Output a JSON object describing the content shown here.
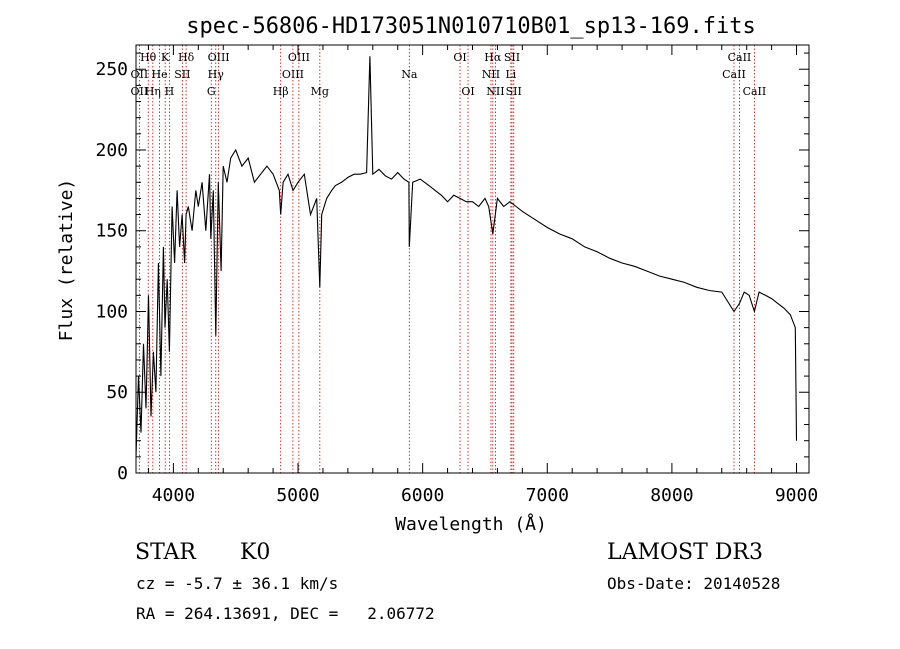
{
  "chart_data": {
    "type": "line",
    "title": "spec-56806-HD173051N010710B01_sp13-169.fits",
    "xlabel": "Wavelength (Å)",
    "ylabel": "Flux (relative)",
    "xlim": [
      3700,
      9100
    ],
    "ylim": [
      0,
      265
    ],
    "xticks": [
      4000,
      5000,
      6000,
      7000,
      8000,
      9000
    ],
    "yticks": [
      0,
      50,
      100,
      150,
      200,
      250
    ],
    "series": [
      {
        "name": "flux",
        "x": [
          3700,
          3720,
          3740,
          3760,
          3780,
          3800,
          3820,
          3840,
          3860,
          3880,
          3900,
          3920,
          3933,
          3950,
          3968,
          3990,
          4010,
          4030,
          4050,
          4070,
          4090,
          4102,
          4120,
          4150,
          4180,
          4200,
          4230,
          4260,
          4290,
          4300,
          4320,
          4340,
          4360,
          4383,
          4400,
          4430,
          4460,
          4500,
          4550,
          4600,
          4650,
          4700,
          4750,
          4800,
          4850,
          4861,
          4880,
          4920,
          4960,
          5000,
          5050,
          5100,
          5150,
          5175,
          5190,
          5230,
          5270,
          5300,
          5350,
          5400,
          5450,
          5500,
          5550,
          5577,
          5600,
          5650,
          5700,
          5750,
          5800,
          5850,
          5890,
          5893,
          5920,
          5980,
          6050,
          6100,
          6150,
          6200,
          6250,
          6300,
          6350,
          6400,
          6450,
          6500,
          6530,
          6563,
          6600,
          6650,
          6700,
          6750,
          6800,
          6900,
          7000,
          7100,
          7200,
          7300,
          7400,
          7500,
          7600,
          7700,
          7800,
          7900,
          8000,
          8100,
          8200,
          8300,
          8400,
          8498,
          8542,
          8580,
          8620,
          8662,
          8700,
          8750,
          8800,
          8850,
          8900,
          8950,
          8990,
          9000
        ],
        "values": [
          10,
          60,
          25,
          80,
          40,
          110,
          35,
          75,
          50,
          130,
          60,
          140,
          90,
          120,
          75,
          165,
          130,
          175,
          140,
          160,
          130,
          160,
          165,
          150,
          175,
          165,
          180,
          150,
          185,
          145,
          175,
          85,
          180,
          125,
          190,
          180,
          195,
          200,
          190,
          195,
          180,
          185,
          190,
          185,
          175,
          160,
          180,
          185,
          175,
          180,
          185,
          160,
          170,
          115,
          160,
          170,
          175,
          178,
          180,
          183,
          185,
          185,
          186,
          258,
          185,
          188,
          184,
          182,
          186,
          182,
          180,
          140,
          180,
          182,
          178,
          175,
          172,
          168,
          172,
          170,
          168,
          168,
          165,
          170,
          165,
          148,
          170,
          165,
          168,
          165,
          162,
          157,
          152,
          148,
          145,
          140,
          137,
          133,
          130,
          128,
          125,
          122,
          120,
          118,
          115,
          113,
          112,
          100,
          105,
          112,
          110,
          100,
          112,
          110,
          108,
          105,
          102,
          98,
          90,
          20
        ]
      }
    ],
    "annotations": [
      {
        "label": "Hθ",
        "x": 3798,
        "row": 1
      },
      {
        "label": "OII",
        "x": 3727,
        "row": 2
      },
      {
        "label": "OII",
        "x": 3727,
        "row": 3
      },
      {
        "label": "Hη",
        "x": 3835,
        "row": 3
      },
      {
        "label": "He",
        "x": 3889,
        "row": 2
      },
      {
        "label": "K",
        "x": 3934,
        "row": 1
      },
      {
        "label": "H",
        "x": 3968,
        "row": 3
      },
      {
        "label": "SII",
        "x": 4072,
        "row": 2
      },
      {
        "label": "Hδ",
        "x": 4102,
        "row": 1
      },
      {
        "label": "OIII",
        "x": 4363,
        "row": 1
      },
      {
        "label": "Hγ",
        "x": 4340,
        "row": 2
      },
      {
        "label": "G",
        "x": 4304,
        "row": 3
      },
      {
        "label": "Hβ",
        "x": 4861,
        "row": 3
      },
      {
        "label": "OIII",
        "x": 5007,
        "row": 1
      },
      {
        "label": "OIII",
        "x": 4959,
        "row": 2
      },
      {
        "label": "Mg",
        "x": 5175,
        "row": 3
      },
      {
        "label": "Na",
        "x": 5893,
        "row": 2
      },
      {
        "label": "OI",
        "x": 6300,
        "row": 1
      },
      {
        "label": "OI",
        "x": 6364,
        "row": 3
      },
      {
        "label": "Hα",
        "x": 6563,
        "row": 1
      },
      {
        "label": "NII",
        "x": 6548,
        "row": 2
      },
      {
        "label": "NII",
        "x": 6584,
        "row": 3
      },
      {
        "label": "SII",
        "x": 6717,
        "row": 1
      },
      {
        "label": "Li",
        "x": 6708,
        "row": 2
      },
      {
        "label": "SII",
        "x": 6731,
        "row": 3
      },
      {
        "label": "CaII",
        "x": 8542,
        "row": 1
      },
      {
        "label": "CaII",
        "x": 8498,
        "row": 2
      },
      {
        "label": "CaII",
        "x": 8662,
        "row": 3
      }
    ],
    "line_color": "#000000",
    "marker_color": "#cc0000"
  },
  "info": {
    "object_class": "STAR",
    "subclass": "K0",
    "survey": "LAMOST DR3",
    "redshift": "cz = -5.7 ± 36.1 km/s",
    "obs_date": "Obs-Date: 20140528",
    "coords": "RA = 264.13691, DEC =   2.06772"
  }
}
